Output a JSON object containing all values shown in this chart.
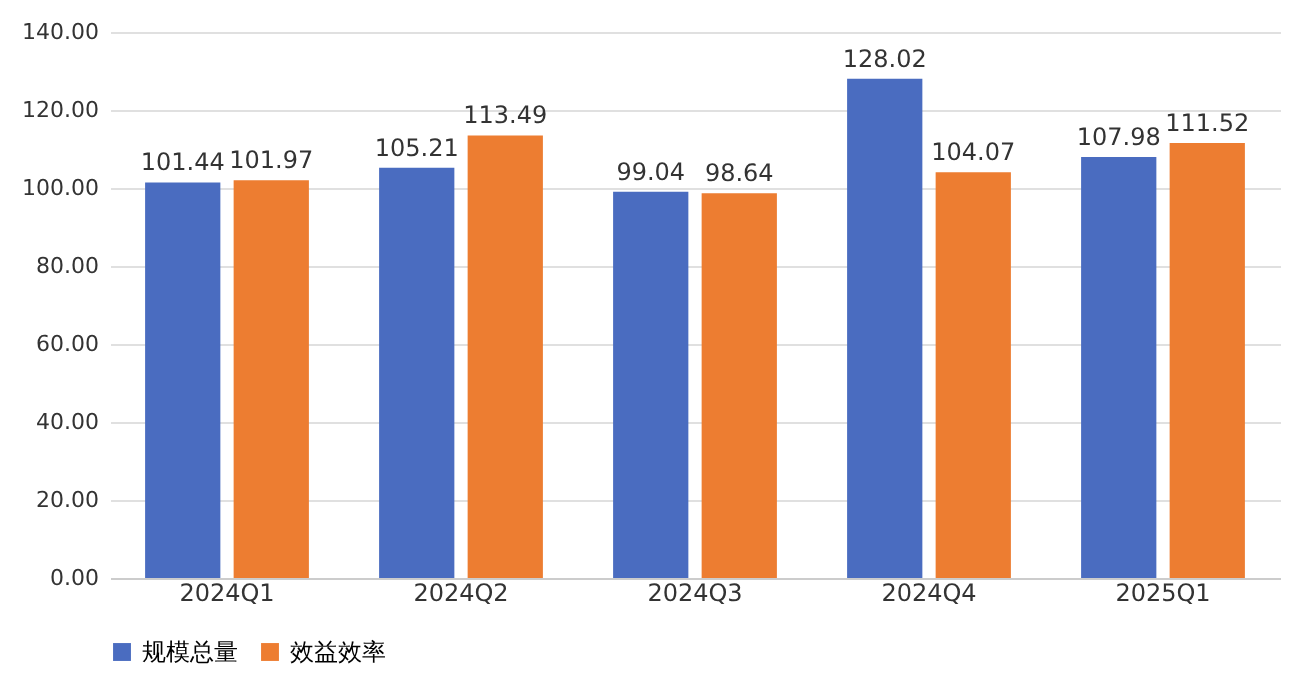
{
  "chart_data": {
    "type": "bar",
    "categories": [
      "2024Q1",
      "2024Q2",
      "2024Q3",
      "2024Q4",
      "2025Q1"
    ],
    "series": [
      {
        "name": "规模总量",
        "color": "#4a6cc0",
        "values": [
          101.44,
          105.21,
          99.04,
          128.02,
          107.98
        ]
      },
      {
        "name": "效益效率",
        "color": "#ed7d31",
        "values": [
          101.97,
          113.49,
          98.64,
          104.07,
          111.52
        ]
      }
    ],
    "ylim": [
      0,
      140
    ],
    "yticks": [
      {
        "value": 0,
        "label": "0.00"
      },
      {
        "value": 20,
        "label": "20.00"
      },
      {
        "value": 40,
        "label": "40.00"
      },
      {
        "value": 60,
        "label": "60.00"
      },
      {
        "value": 80,
        "label": "80.00"
      },
      {
        "value": 100,
        "label": "100.00"
      },
      {
        "value": 120,
        "label": "120.00"
      },
      {
        "value": 140,
        "label": "140.00"
      }
    ],
    "grid": "y",
    "legend": "bottom",
    "data_labels": true
  }
}
